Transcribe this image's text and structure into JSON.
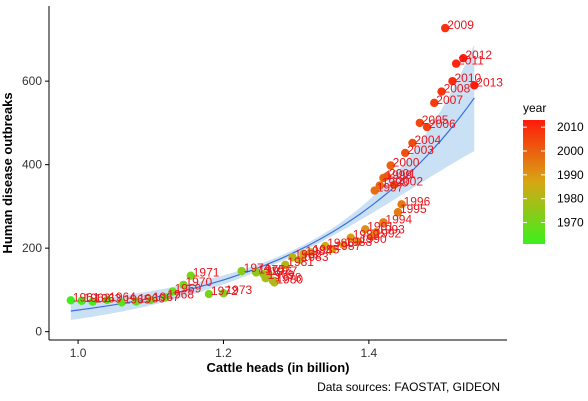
{
  "chart_data": {
    "type": "scatter",
    "xlabel": "Cattle heads (in billion)",
    "ylabel": "Human disease outbreaks",
    "caption": "Data sources: FAOSTAT, GIDEON",
    "xlim": [
      0.96,
      1.59
    ],
    "ylim": [
      -20,
      780
    ],
    "x_ticks": [
      1.0,
      1.2,
      1.4
    ],
    "x_tick_labels": [
      "1.0",
      "1.2",
      "1.4"
    ],
    "y_ticks": [
      0,
      200,
      400,
      600
    ],
    "y_tick_labels": [
      "0",
      "200",
      "400",
      "600"
    ],
    "grid": false,
    "smooth_line": true,
    "legend": {
      "title": "year",
      "position": "right",
      "range": [
        1961,
        2013
      ],
      "ticks": [
        1970,
        1980,
        1990,
        2000,
        2010
      ],
      "tick_labels": [
        "1970",
        "1980",
        "1990",
        "2000",
        "2010"
      ],
      "low_color": "#3cf01e",
      "mid_color": "#d7a614",
      "high_color": "#ff1a0a"
    },
    "label_color": "#e8151d",
    "trend_color": "#3a6fe0",
    "band_color": "#b3d3ef",
    "points": [
      {
        "year": "1961",
        "x": 0.99,
        "y": 75
      },
      {
        "year": "1962",
        "x": 1.005,
        "y": 74
      },
      {
        "year": "1963",
        "x": 1.02,
        "y": 72
      },
      {
        "year": "1964",
        "x": 1.04,
        "y": 76
      },
      {
        "year": "1965",
        "x": 1.06,
        "y": 70
      },
      {
        "year": "1966",
        "x": 1.08,
        "y": 72
      },
      {
        "year": "1967",
        "x": 1.1,
        "y": 76
      },
      {
        "year": "1968",
        "x": 1.12,
        "y": 82
      },
      {
        "year": "1969",
        "x": 1.13,
        "y": 96
      },
      {
        "year": "1970",
        "x": 1.145,
        "y": 112
      },
      {
        "year": "1971",
        "x": 1.155,
        "y": 134
      },
      {
        "year": "1972",
        "x": 1.18,
        "y": 90
      },
      {
        "year": "1973",
        "x": 1.2,
        "y": 92
      },
      {
        "year": "1974",
        "x": 1.225,
        "y": 145
      },
      {
        "year": "1975",
        "x": 1.245,
        "y": 142
      },
      {
        "year": "1976",
        "x": 1.255,
        "y": 138
      },
      {
        "year": "1977",
        "x": 1.262,
        "y": 138
      },
      {
        "year": "1978",
        "x": 1.268,
        "y": 122
      },
      {
        "year": "1979",
        "x": 1.258,
        "y": 128
      },
      {
        "year": "1980",
        "x": 1.27,
        "y": 118
      },
      {
        "year": "1981",
        "x": 1.285,
        "y": 160
      },
      {
        "year": "1982",
        "x": 1.295,
        "y": 178
      },
      {
        "year": "1983",
        "x": 1.305,
        "y": 172
      },
      {
        "year": "1984",
        "x": 1.31,
        "y": 186
      },
      {
        "year": "1985",
        "x": 1.32,
        "y": 190
      },
      {
        "year": "1986",
        "x": 1.34,
        "y": 205
      },
      {
        "year": "1987",
        "x": 1.35,
        "y": 198
      },
      {
        "year": "1988",
        "x": 1.365,
        "y": 208
      },
      {
        "year": "1989",
        "x": 1.375,
        "y": 225
      },
      {
        "year": "1990",
        "x": 1.385,
        "y": 215
      },
      {
        "year": "1991",
        "x": 1.395,
        "y": 245
      },
      {
        "year": "1992",
        "x": 1.405,
        "y": 228
      },
      {
        "year": "1993",
        "x": 1.41,
        "y": 238
      },
      {
        "year": "1994",
        "x": 1.42,
        "y": 262
      },
      {
        "year": "1995",
        "x": 1.44,
        "y": 286
      },
      {
        "year": "1996",
        "x": 1.445,
        "y": 305
      },
      {
        "year": "1997",
        "x": 1.408,
        "y": 338
      },
      {
        "year": "1998",
        "x": 1.415,
        "y": 350
      },
      {
        "year": "1999",
        "x": 1.42,
        "y": 368
      },
      {
        "year": "2000",
        "x": 1.43,
        "y": 398
      },
      {
        "year": "2001",
        "x": 1.425,
        "y": 372
      },
      {
        "year": "2002",
        "x": 1.435,
        "y": 352
      },
      {
        "year": "2003",
        "x": 1.45,
        "y": 428
      },
      {
        "year": "2004",
        "x": 1.46,
        "y": 452
      },
      {
        "year": "2005",
        "x": 1.47,
        "y": 500
      },
      {
        "year": "2006",
        "x": 1.48,
        "y": 490
      },
      {
        "year": "2007",
        "x": 1.49,
        "y": 548
      },
      {
        "year": "2008",
        "x": 1.5,
        "y": 575
      },
      {
        "year": "2009",
        "x": 1.505,
        "y": 727
      },
      {
        "year": "2010",
        "x": 1.515,
        "y": 600
      },
      {
        "year": "2011",
        "x": 1.52,
        "y": 642
      },
      {
        "year": "2012",
        "x": 1.53,
        "y": 655
      },
      {
        "year": "2013",
        "x": 1.545,
        "y": 590
      }
    ]
  }
}
